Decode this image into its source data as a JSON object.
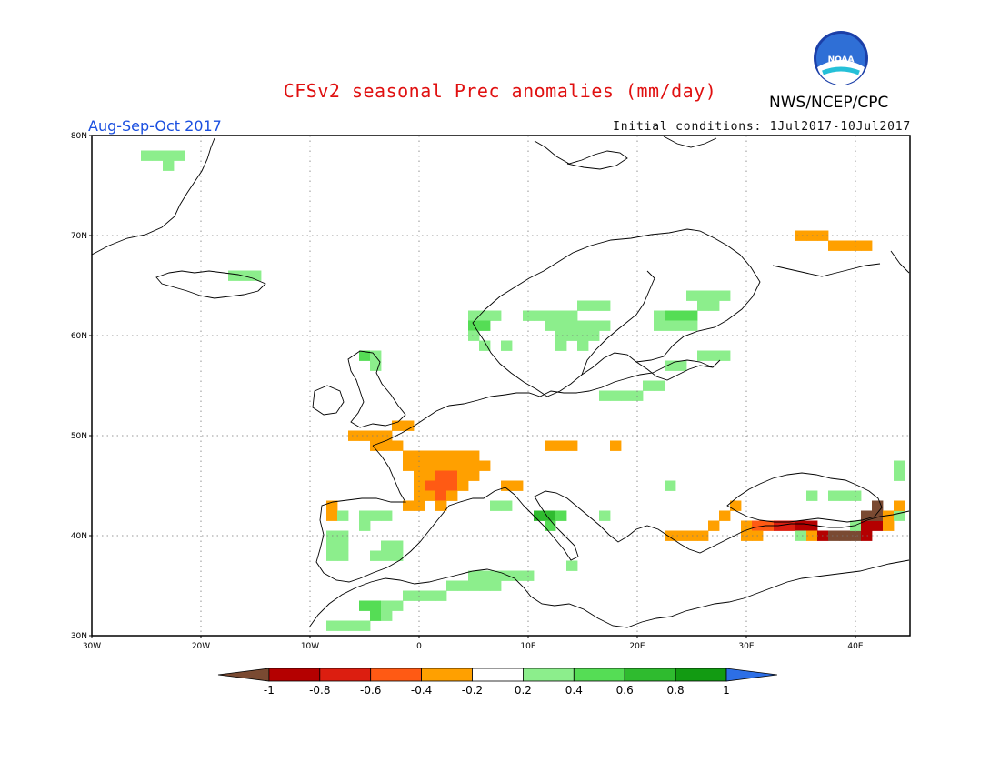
{
  "header": {
    "title": "CFSv2 seasonal Prec anomalies (mm/day)",
    "org": "NWS/NCEP/CPC",
    "season": "Aug-Sep-Oct 2017",
    "initial_conditions": "Initial conditions: 1Jul2017-10Jul2017",
    "logo_text": "NOAA"
  },
  "map": {
    "lon_range": [
      -30,
      45
    ],
    "lat_range": [
      30,
      80
    ],
    "x_ticks": [
      "30W",
      "20W",
      "10W",
      "0",
      "10E",
      "20E",
      "30E",
      "40E"
    ],
    "y_ticks": [
      "30N",
      "40N",
      "50N",
      "60N",
      "70N",
      "80N"
    ],
    "grid": "dotted"
  },
  "colorbar": {
    "labels": [
      "-1",
      "-0.8",
      "-0.6",
      "-0.4",
      "-0.2",
      "0.2",
      "0.4",
      "0.6",
      "0.8",
      "1"
    ],
    "colors": [
      "#7a4a32",
      "#b40000",
      "#dc1e10",
      "#ff5a14",
      "#ffa000",
      "#ffffff",
      "#8cee8c",
      "#55dd55",
      "#2fbb2f",
      "#129b12",
      "#2d6fe6"
    ]
  },
  "colors": {
    "title": "#e01010",
    "season": "#1a4fe0",
    "coastline": "#000000",
    "grid": "#777777"
  }
}
